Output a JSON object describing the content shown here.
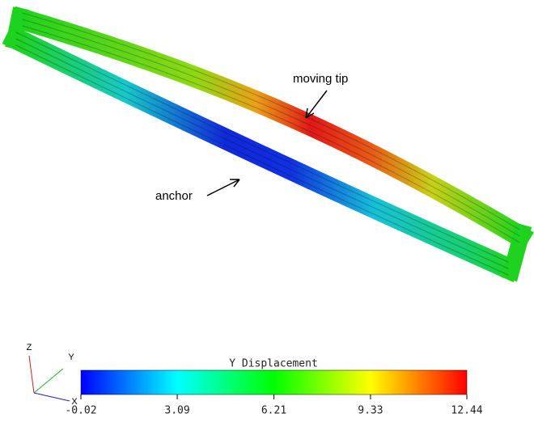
{
  "annotations": [
    "moving tip",
    "anchor"
  ],
  "colorbar": {
    "title": "Y Displacement",
    "range": [
      -0.02,
      12.44
    ],
    "ticks": [
      -0.02,
      3.09,
      6.21,
      9.33,
      12.44
    ]
  },
  "triad": {
    "labels": [
      "Z",
      "Y",
      "X"
    ]
  }
}
